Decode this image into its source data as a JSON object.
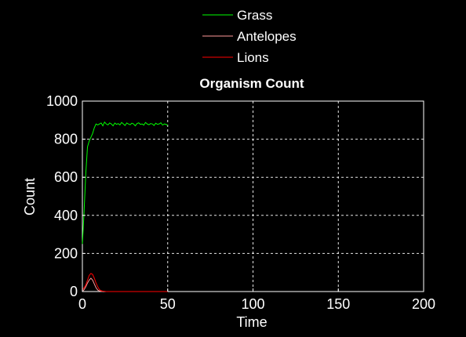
{
  "chart_data": {
    "type": "line",
    "title": "Organism Count",
    "xlabel": "Time",
    "ylabel": "Count",
    "xlim": [
      0,
      200
    ],
    "ylim": [
      0,
      1000
    ],
    "xticks": [
      0,
      50,
      100,
      150,
      200
    ],
    "yticks": [
      0,
      200,
      400,
      600,
      800,
      1000
    ],
    "grid": true,
    "legend_position": "top-center",
    "series": [
      {
        "name": "Grass",
        "color": "#00ff00",
        "x": [
          0,
          1,
          2,
          3,
          4,
          5,
          6,
          7,
          8,
          9,
          10,
          11,
          12,
          13,
          14,
          15,
          16,
          17,
          18,
          19,
          20,
          21,
          22,
          23,
          24,
          25,
          26,
          27,
          28,
          29,
          30,
          31,
          32,
          33,
          34,
          35,
          36,
          37,
          38,
          39,
          40,
          41,
          42,
          43,
          44,
          45,
          46,
          47,
          48,
          49,
          50
        ],
        "y": [
          250,
          420,
          620,
          760,
          790,
          810,
          830,
          860,
          880,
          875,
          880,
          885,
          870,
          890,
          880,
          875,
          885,
          880,
          870,
          885,
          878,
          882,
          875,
          888,
          880,
          872,
          885,
          880,
          876,
          884,
          880,
          870,
          882,
          886,
          878,
          880,
          874,
          888,
          880,
          876,
          882,
          880,
          872,
          884,
          878,
          880,
          886,
          874,
          880,
          878,
          872
        ]
      },
      {
        "name": "Antelopes",
        "color": "#ff9a9a",
        "x": [
          0,
          1,
          2,
          3,
          4,
          5,
          6,
          7,
          8,
          9,
          10,
          11,
          12
        ],
        "y": [
          0,
          10,
          25,
          45,
          60,
          70,
          60,
          40,
          20,
          8,
          3,
          1,
          0
        ]
      },
      {
        "name": "Lions",
        "color": "#ff0000",
        "x": [
          0,
          1,
          2,
          3,
          4,
          5,
          6,
          7,
          8,
          9,
          10,
          11,
          12,
          13,
          14,
          15,
          20,
          25,
          30,
          35,
          40,
          45,
          50
        ],
        "y": [
          10,
          20,
          35,
          60,
          85,
          95,
          90,
          70,
          45,
          25,
          10,
          4,
          2,
          1,
          0,
          0,
          0,
          0,
          0,
          0,
          0,
          0,
          0
        ]
      }
    ]
  }
}
